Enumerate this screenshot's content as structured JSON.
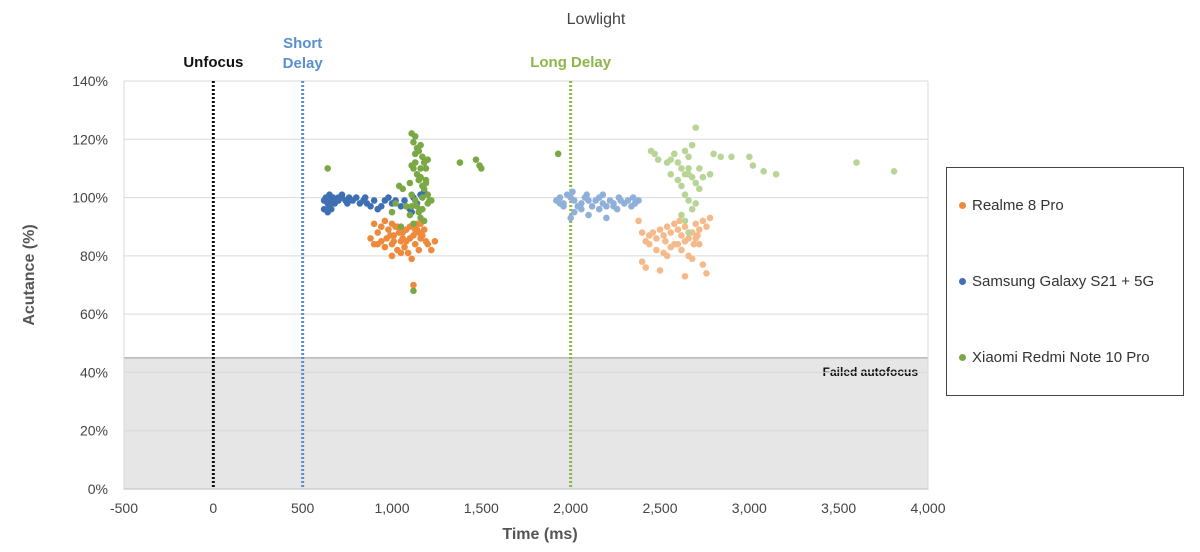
{
  "chart_data": {
    "type": "scatter",
    "title": "Lowlight",
    "xlabel": "Time (ms)",
    "ylabel": "Acutance (%)",
    "xlim": [
      -500,
      4000
    ],
    "ylim": [
      0,
      140
    ],
    "x_ticks": [
      "-500",
      "0",
      "500",
      "1,000",
      "1,500",
      "2,000",
      "2,500",
      "3,000",
      "3,500",
      "4,000"
    ],
    "y_ticks": [
      "0%",
      "20%",
      "40%",
      "60%",
      "80%",
      "100%",
      "120%",
      "140%"
    ],
    "grid": "horizontal",
    "legend_position": "right",
    "failed_region": {
      "label": "Failed autofocus",
      "y_max": 45,
      "color": "#e6e6e6"
    },
    "markers": [
      {
        "label": "Unfocus",
        "x": 0,
        "color": "#111111"
      },
      {
        "label": "Short\nDelay",
        "x": 500,
        "color": "#5a8fd0"
      },
      {
        "label": "Long Delay",
        "x": 2000,
        "color": "#8db54a"
      }
    ],
    "series": [
      {
        "name": "Realme 8 Pro",
        "color": "#ef8a3c",
        "points": [
          [
            900,
            91
          ],
          [
            920,
            88
          ],
          [
            940,
            90
          ],
          [
            960,
            92
          ],
          [
            980,
            89
          ],
          [
            1000,
            91
          ],
          [
            1010,
            87
          ],
          [
            1020,
            90
          ],
          [
            1040,
            88
          ],
          [
            1060,
            86
          ],
          [
            1080,
            89
          ],
          [
            1100,
            90
          ],
          [
            1120,
            87
          ],
          [
            1140,
            91
          ],
          [
            1150,
            88
          ],
          [
            1160,
            86
          ],
          [
            1180,
            89
          ],
          [
            1200,
            84
          ],
          [
            1220,
            82
          ],
          [
            1240,
            85
          ],
          [
            880,
            86
          ],
          [
            900,
            84
          ],
          [
            940,
            85
          ],
          [
            960,
            83
          ],
          [
            990,
            87
          ],
          [
            1000,
            84
          ],
          [
            1030,
            82
          ],
          [
            1050,
            85
          ],
          [
            1070,
            83
          ],
          [
            1090,
            81
          ],
          [
            1110,
            79
          ],
          [
            1130,
            84
          ],
          [
            1150,
            82
          ],
          [
            1000,
            80
          ],
          [
            1050,
            81
          ],
          [
            1170,
            87
          ],
          [
            1190,
            85
          ],
          [
            1140,
            89
          ],
          [
            1080,
            85
          ],
          [
            1030,
            90
          ],
          [
            920,
            84
          ],
          [
            970,
            86
          ],
          [
            1010,
            85
          ],
          [
            1060,
            88
          ],
          [
            1100,
            86
          ],
          [
            1130,
            89
          ],
          [
            1160,
            91
          ],
          [
            1120,
            70
          ]
        ]
      },
      {
        "name": "Samsung Galaxy S21 + 5G",
        "color": "#3f6fb3",
        "points": [
          [
            620,
            99
          ],
          [
            630,
            100
          ],
          [
            640,
            98
          ],
          [
            650,
            97
          ],
          [
            660,
            99
          ],
          [
            670,
            100
          ],
          [
            680,
            98
          ],
          [
            700,
            99
          ],
          [
            720,
            100
          ],
          [
            740,
            99
          ],
          [
            760,
            100
          ],
          [
            780,
            99
          ],
          [
            800,
            100
          ],
          [
            820,
            98
          ],
          [
            840,
            99
          ],
          [
            860,
            98
          ],
          [
            880,
            97
          ],
          [
            900,
            99
          ],
          [
            920,
            96
          ],
          [
            940,
            97
          ],
          [
            960,
            99
          ],
          [
            980,
            100
          ],
          [
            1000,
            98
          ],
          [
            1020,
            99
          ],
          [
            1050,
            97
          ],
          [
            1070,
            99
          ],
          [
            1100,
            96
          ],
          [
            1120,
            100
          ],
          [
            1140,
            98
          ],
          [
            1160,
            101
          ],
          [
            1180,
            102
          ],
          [
            620,
            96
          ],
          [
            640,
            95
          ],
          [
            660,
            96
          ],
          [
            700,
            100
          ],
          [
            720,
            101
          ],
          [
            650,
            101
          ],
          [
            750,
            98
          ],
          [
            850,
            100
          ],
          [
            1110,
            95
          ]
        ]
      },
      {
        "name": "Xiaomi Redmi Note 10 Pro",
        "color": "#79a844",
        "points": [
          [
            1110,
            122
          ],
          [
            1120,
            119
          ],
          [
            1130,
            121
          ],
          [
            1140,
            117
          ],
          [
            1150,
            116
          ],
          [
            1160,
            118
          ],
          [
            1170,
            114
          ],
          [
            1180,
            112
          ],
          [
            1190,
            110
          ],
          [
            1200,
            113
          ],
          [
            1120,
            110
          ],
          [
            1130,
            112
          ],
          [
            1140,
            108
          ],
          [
            1150,
            106
          ],
          [
            1160,
            110
          ],
          [
            1170,
            104
          ],
          [
            1180,
            103
          ],
          [
            1190,
            106
          ],
          [
            1200,
            101
          ],
          [
            1210,
            99
          ],
          [
            1100,
            105
          ],
          [
            1110,
            101
          ],
          [
            1130,
            99
          ],
          [
            1140,
            97
          ],
          [
            1150,
            95
          ],
          [
            1160,
            93
          ],
          [
            1170,
            96
          ],
          [
            1180,
            92
          ],
          [
            1100,
            94
          ],
          [
            1110,
            97
          ],
          [
            1120,
            91
          ],
          [
            1060,
            103
          ],
          [
            1080,
            97
          ],
          [
            1050,
            90
          ],
          [
            1000,
            95
          ],
          [
            1020,
            98
          ],
          [
            1040,
            104
          ],
          [
            1200,
            98
          ],
          [
            1220,
            99
          ],
          [
            1380,
            112
          ],
          [
            1470,
            113
          ],
          [
            1490,
            111
          ],
          [
            1500,
            110
          ],
          [
            1930,
            115
          ],
          [
            1190,
            105
          ],
          [
            1160,
            107
          ],
          [
            1130,
            115
          ],
          [
            1110,
            111
          ],
          [
            640,
            110
          ],
          [
            1120,
            68
          ],
          [
            1170,
            100
          ]
        ]
      }
    ],
    "series_faded": [
      {
        "name": "Realme 8 Pro",
        "color": "#f5b98a",
        "points": [
          [
            2380,
            92
          ],
          [
            2400,
            88
          ],
          [
            2420,
            85
          ],
          [
            2440,
            87
          ],
          [
            2460,
            88
          ],
          [
            2480,
            86
          ],
          [
            2500,
            89
          ],
          [
            2520,
            87
          ],
          [
            2540,
            90
          ],
          [
            2560,
            88
          ],
          [
            2580,
            91
          ],
          [
            2600,
            89
          ],
          [
            2620,
            87
          ],
          [
            2640,
            90
          ],
          [
            2660,
            86
          ],
          [
            2680,
            88
          ],
          [
            2700,
            91
          ],
          [
            2720,
            89
          ],
          [
            2740,
            92
          ],
          [
            2760,
            90
          ],
          [
            2400,
            78
          ],
          [
            2420,
            76
          ],
          [
            2500,
            75
          ],
          [
            2540,
            80
          ],
          [
            2560,
            83
          ],
          [
            2600,
            84
          ],
          [
            2620,
            82
          ],
          [
            2640,
            73
          ],
          [
            2680,
            79
          ],
          [
            2740,
            77
          ],
          [
            2760,
            74
          ],
          [
            2440,
            84
          ],
          [
            2480,
            82
          ],
          [
            2520,
            81
          ],
          [
            2580,
            84
          ],
          [
            2660,
            80
          ],
          [
            2700,
            86
          ],
          [
            2720,
            84
          ],
          [
            2780,
            93
          ],
          [
            2530,
            85
          ],
          [
            2610,
            92
          ],
          [
            2640,
            85
          ],
          [
            2690,
            84
          ],
          [
            2710,
            87
          ]
        ]
      },
      {
        "name": "Samsung Galaxy S21 + 5G",
        "color": "#8fb0d8",
        "points": [
          [
            1920,
            99
          ],
          [
            1940,
            100
          ],
          [
            1960,
            98
          ],
          [
            1980,
            101
          ],
          [
            2000,
            100
          ],
          [
            2020,
            99
          ],
          [
            2040,
            97
          ],
          [
            2060,
            98
          ],
          [
            2080,
            100
          ],
          [
            2100,
            99
          ],
          [
            2120,
            97
          ],
          [
            2140,
            99
          ],
          [
            2160,
            100
          ],
          [
            2180,
            98
          ],
          [
            2200,
            97
          ],
          [
            2220,
            99
          ],
          [
            2240,
            98
          ],
          [
            2260,
            96
          ],
          [
            2280,
            99
          ],
          [
            2300,
            98
          ],
          [
            2320,
            99
          ],
          [
            2340,
            97
          ],
          [
            2360,
            98
          ],
          [
            2380,
            99
          ],
          [
            1960,
            97
          ],
          [
            2000,
            93
          ],
          [
            2020,
            95
          ],
          [
            2060,
            96
          ],
          [
            2100,
            94
          ],
          [
            2160,
            96
          ],
          [
            2200,
            93
          ],
          [
            2240,
            97
          ],
          [
            1940,
            98
          ],
          [
            2010,
            102
          ],
          [
            2090,
            101
          ],
          [
            2180,
            101
          ],
          [
            2270,
            100
          ],
          [
            2350,
            100
          ]
        ]
      },
      {
        "name": "Xiaomi Redmi Note 10 Pro",
        "color": "#b8d497",
        "points": [
          [
            2450,
            116
          ],
          [
            2470,
            115
          ],
          [
            2490,
            113
          ],
          [
            2540,
            112
          ],
          [
            2560,
            108
          ],
          [
            2580,
            115
          ],
          [
            2600,
            112
          ],
          [
            2620,
            110
          ],
          [
            2640,
            116
          ],
          [
            2660,
            114
          ],
          [
            2680,
            118
          ],
          [
            2700,
            124
          ],
          [
            2600,
            106
          ],
          [
            2620,
            104
          ],
          [
            2640,
            108
          ],
          [
            2660,
            110
          ],
          [
            2680,
            107
          ],
          [
            2700,
            105
          ],
          [
            2720,
            103
          ],
          [
            2740,
            107
          ],
          [
            2780,
            108
          ],
          [
            2640,
            101
          ],
          [
            2660,
            99
          ],
          [
            2680,
            96
          ],
          [
            2700,
            98
          ],
          [
            2640,
            92
          ],
          [
            2620,
            94
          ],
          [
            2660,
            88
          ],
          [
            2800,
            115
          ],
          [
            2840,
            114
          ],
          [
            2900,
            114
          ],
          [
            3000,
            114
          ],
          [
            3020,
            111
          ],
          [
            3080,
            109
          ],
          [
            3150,
            108
          ],
          [
            3600,
            112
          ],
          [
            3810,
            109
          ],
          [
            2560,
            113
          ],
          [
            2720,
            110
          ],
          [
            2660,
            108
          ]
        ]
      }
    ]
  },
  "legend": {
    "items": [
      {
        "label": "Realme 8 Pro",
        "color": "#ef8a3c"
      },
      {
        "label": "Samsung Galaxy S21 + 5G",
        "color": "#3f6fb3"
      },
      {
        "label": "Xiaomi Redmi Note 10 Pro",
        "color": "#79a844"
      }
    ]
  }
}
